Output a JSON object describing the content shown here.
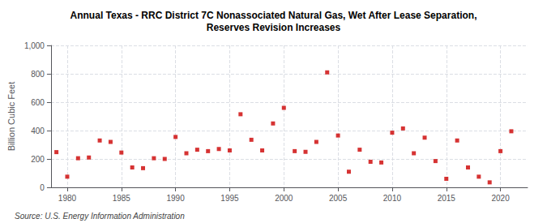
{
  "chart_data": {
    "type": "scatter",
    "title": "Annual Texas - RRC District 7C Nonassociated Natural Gas, Wet After Lease Separation,\nReserves Revision Increases",
    "ylabel": "Billion Cubic Feet",
    "annotations": [
      "Source: U.S. Energy Information Administration"
    ],
    "x": [
      1979,
      1980,
      1981,
      1982,
      1983,
      1984,
      1985,
      1986,
      1987,
      1988,
      1989,
      1990,
      1991,
      1992,
      1993,
      1994,
      1995,
      1996,
      1997,
      1998,
      1999,
      2000,
      2001,
      2002,
      2003,
      2004,
      2005,
      2006,
      2007,
      2008,
      2009,
      2010,
      2011,
      2012,
      2013,
      2014,
      2015,
      2016,
      2017,
      2018,
      2019,
      2020,
      2021
    ],
    "values": [
      248,
      75,
      205,
      210,
      330,
      320,
      245,
      140,
      135,
      205,
      200,
      355,
      240,
      265,
      255,
      270,
      260,
      515,
      335,
      260,
      450,
      560,
      255,
      250,
      320,
      810,
      365,
      110,
      265,
      180,
      175,
      385,
      415,
      240,
      350,
      185,
      60,
      330,
      140,
      75,
      35,
      255,
      395
    ],
    "color": "#cc0000",
    "marker": "square",
    "xlim": [
      1978.5,
      2022.5
    ],
    "xticks": [
      1980,
      1985,
      1990,
      1995,
      2000,
      2005,
      2010,
      2015,
      2020
    ],
    "ylim": [
      0,
      1000
    ],
    "yticks": [
      0,
      200,
      400,
      600,
      800,
      {
        "value": 1000,
        "label": "1,000"
      }
    ],
    "grid": true
  }
}
